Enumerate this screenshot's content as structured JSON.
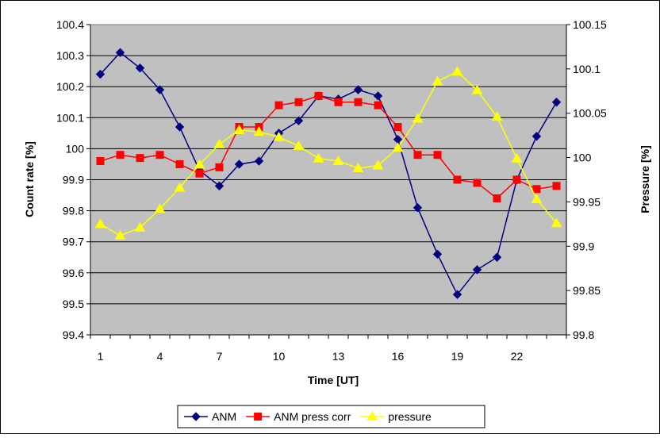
{
  "chart_data": {
    "type": "line",
    "x": [
      1,
      2,
      3,
      4,
      5,
      6,
      7,
      8,
      9,
      10,
      11,
      12,
      13,
      14,
      15,
      16,
      17,
      18,
      19,
      20,
      21,
      22,
      23,
      24
    ],
    "xticks": [
      1,
      4,
      7,
      10,
      13,
      16,
      19,
      22
    ],
    "xtick_labels": [
      "1",
      "4",
      "7",
      "10",
      "13",
      "16",
      "19",
      "22"
    ],
    "xlabel": "Time [UT]",
    "ylabel_left": "Count rate [%]",
    "ylabel_right": "Pressure [%]",
    "ylim_left": [
      99.4,
      100.4
    ],
    "yticks_left": [
      "99.4",
      "99.5",
      "99.6",
      "99.7",
      "99.8",
      "99.9",
      "100",
      "100.1",
      "100.2",
      "100.3",
      "100.4"
    ],
    "ylim_right": [
      99.8,
      100.15
    ],
    "yticks_right": [
      "99.8",
      "99.85",
      "99.9",
      "99.95",
      "100",
      "100.05",
      "100.1",
      "100.15"
    ],
    "grid": "horizontal",
    "plot_background": "#c0c0c0",
    "legend_position": "bottom",
    "series": [
      {
        "name": "ANM",
        "axis": "left",
        "color": "#000080",
        "marker": "diamond",
        "values": [
          100.24,
          100.31,
          100.26,
          100.19,
          100.07,
          99.93,
          99.88,
          99.95,
          99.96,
          100.05,
          100.09,
          100.17,
          100.16,
          100.19,
          100.17,
          100.03,
          99.81,
          99.66,
          99.53,
          99.61,
          99.65,
          99.9,
          100.04,
          100.15
        ]
      },
      {
        "name": "ANM press corr",
        "axis": "left",
        "color": "#ff0000",
        "marker": "square",
        "values": [
          99.96,
          99.98,
          99.97,
          99.98,
          99.95,
          99.92,
          99.94,
          100.07,
          100.07,
          100.14,
          100.15,
          100.17,
          100.15,
          100.15,
          100.14,
          100.07,
          99.98,
          99.98,
          99.9,
          99.89,
          99.84,
          99.9,
          99.87,
          99.88
        ]
      },
      {
        "name": "pressure",
        "axis": "right",
        "color": "#ffff00",
        "marker": "triangle",
        "values": [
          99.925,
          99.912,
          99.921,
          99.942,
          99.966,
          99.992,
          100.015,
          100.031,
          100.029,
          100.023,
          100.013,
          99.999,
          99.996,
          99.988,
          99.991,
          100.011,
          100.044,
          100.086,
          100.097,
          100.076,
          100.046,
          99.999,
          99.953,
          99.926
        ]
      }
    ]
  }
}
